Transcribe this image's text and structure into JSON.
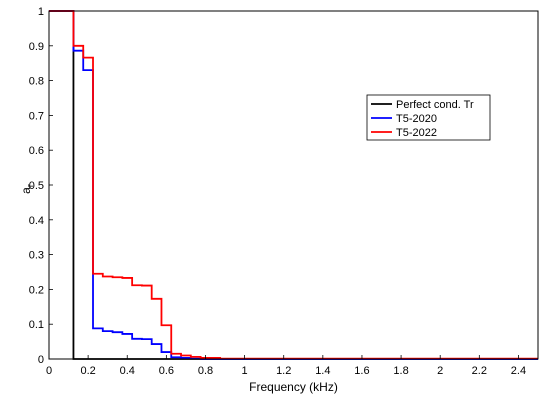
{
  "chart_data": {
    "type": "line",
    "title": "",
    "xlabel": "Frequency (kHz)",
    "ylabel_main": "a",
    "ylabel_sub": "r",
    "xlim": [
      0,
      2.5
    ],
    "ylim": [
      0,
      1.0
    ],
    "x_ticks": [
      0,
      0.2,
      0.4,
      0.6,
      0.8,
      1,
      1.2,
      1.4,
      1.6,
      1.8,
      2,
      2.2,
      2.4
    ],
    "x_tick_labels": [
      "0",
      "0.2",
      "0.4",
      "0.6",
      "0.8",
      "1",
      "1.2",
      "1.4",
      "1.6",
      "1.8",
      "2",
      "2.2",
      "2.4"
    ],
    "y_ticks": [
      0,
      0.1,
      0.2,
      0.3,
      0.4,
      0.5,
      0.6,
      0.7,
      0.8,
      0.9,
      1
    ],
    "y_tick_labels": [
      "0",
      "0.1",
      "0.2",
      "0.3",
      "0.4",
      "0.5",
      "0.6",
      "0.7",
      "0.8",
      "0.9",
      "1"
    ],
    "grid": false,
    "legend_position": "upper-right",
    "series": [
      {
        "name": "Perfect cond. Tr",
        "color": "#000000",
        "x": [
          0,
          0.125,
          0.125,
          2.5
        ],
        "y": [
          1,
          1,
          0,
          0
        ]
      },
      {
        "name": "T5-2020",
        "color": "#0000ff",
        "x": [
          0,
          0.125,
          0.125,
          0.175,
          0.175,
          0.225,
          0.225,
          0.275,
          0.275,
          0.325,
          0.325,
          0.375,
          0.375,
          0.425,
          0.425,
          0.475,
          0.475,
          0.525,
          0.525,
          0.575,
          0.575,
          0.625,
          0.625,
          0.675,
          0.675,
          0.725,
          0.725,
          0.775,
          0.775,
          2.5
        ],
        "y": [
          1,
          1,
          0.886,
          0.886,
          0.83,
          0.83,
          0.088,
          0.088,
          0.08,
          0.08,
          0.077,
          0.077,
          0.072,
          0.072,
          0.058,
          0.058,
          0.057,
          0.057,
          0.043,
          0.043,
          0.02,
          0.02,
          0.005,
          0.005,
          0.003,
          0.003,
          0.001,
          0.001,
          0,
          0
        ]
      },
      {
        "name": "T5-2022",
        "color": "#ff0000",
        "x": [
          0,
          0.125,
          0.125,
          0.175,
          0.175,
          0.225,
          0.225,
          0.275,
          0.275,
          0.325,
          0.325,
          0.375,
          0.375,
          0.425,
          0.425,
          0.475,
          0.475,
          0.525,
          0.525,
          0.575,
          0.575,
          0.625,
          0.625,
          0.675,
          0.675,
          0.725,
          0.725,
          0.775,
          0.775,
          0.875,
          0.875,
          2.5
        ],
        "y": [
          1,
          1,
          0.9,
          0.9,
          0.866,
          0.866,
          0.245,
          0.245,
          0.237,
          0.237,
          0.235,
          0.235,
          0.233,
          0.233,
          0.212,
          0.212,
          0.211,
          0.211,
          0.173,
          0.173,
          0.097,
          0.097,
          0.015,
          0.015,
          0.01,
          0.01,
          0.006,
          0.006,
          0.003,
          0.003,
          0.001,
          0.001
        ]
      }
    ]
  }
}
